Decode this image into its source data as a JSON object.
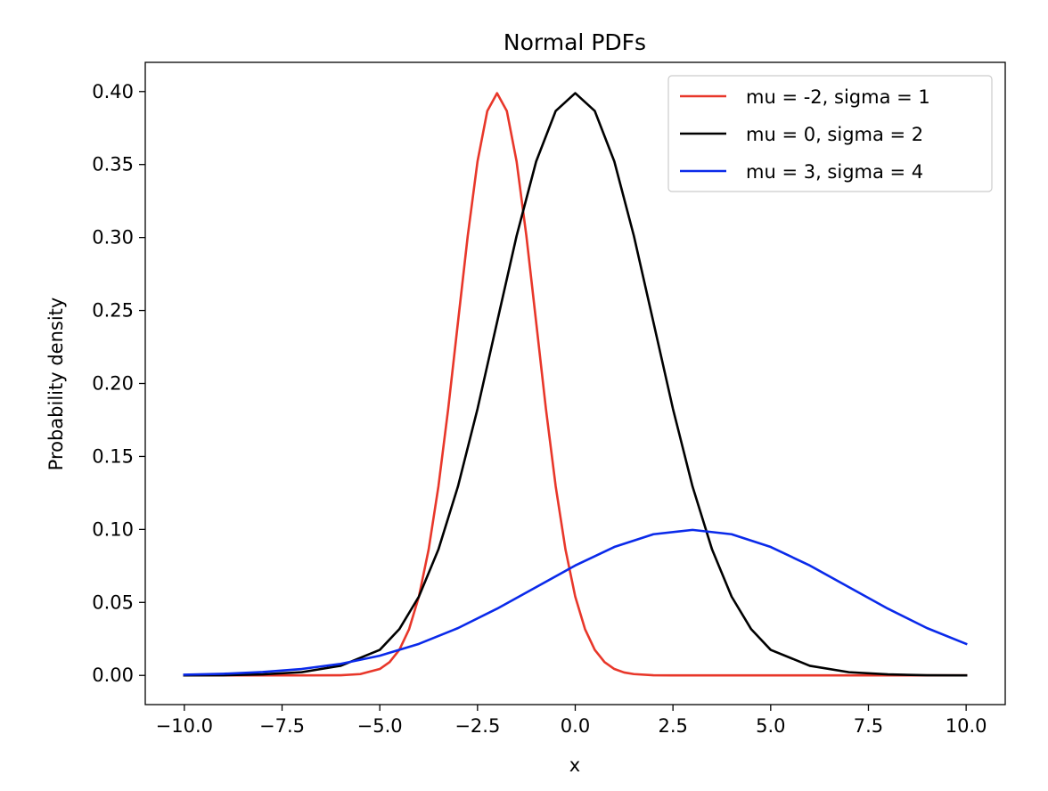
{
  "chart_data": {
    "type": "line",
    "title": "Normal PDFs",
    "xlabel": "x",
    "ylabel": "Probability density",
    "xlim": [
      -11.0,
      11.0
    ],
    "ylim": [
      -0.02,
      0.42
    ],
    "x_ticks": [
      {
        "value": -10.0,
        "label": "−10.0"
      },
      {
        "value": -7.5,
        "label": "−7.5"
      },
      {
        "value": -5.0,
        "label": "−5.0"
      },
      {
        "value": -2.5,
        "label": "−2.5"
      },
      {
        "value": 0.0,
        "label": "0.0"
      },
      {
        "value": 2.5,
        "label": "2.5"
      },
      {
        "value": 5.0,
        "label": "5.0"
      },
      {
        "value": 7.5,
        "label": "7.5"
      },
      {
        "value": 10.0,
        "label": "10.0"
      }
    ],
    "y_ticks": [
      {
        "value": 0.0,
        "label": "0.00"
      },
      {
        "value": 0.05,
        "label": "0.05"
      },
      {
        "value": 0.1,
        "label": "0.10"
      },
      {
        "value": 0.15,
        "label": "0.15"
      },
      {
        "value": 0.2,
        "label": "0.20"
      },
      {
        "value": 0.25,
        "label": "0.25"
      },
      {
        "value": 0.3,
        "label": "0.30"
      },
      {
        "value": 0.35,
        "label": "0.35"
      },
      {
        "value": 0.4,
        "label": "0.40"
      }
    ],
    "grid": false,
    "legend_position": "top-right",
    "series": [
      {
        "name": "mu = -2, sigma = 1",
        "color": "#e8372a",
        "x": [
          -10.0,
          -9.0,
          -8.0,
          -7.0,
          -6.0,
          -5.5,
          -5.0,
          -4.75,
          -4.5,
          -4.25,
          -4.0,
          -3.75,
          -3.5,
          -3.25,
          -3.0,
          -2.75,
          -2.5,
          -2.25,
          -2.0,
          -1.75,
          -1.5,
          -1.25,
          -1.0,
          -0.75,
          -0.5,
          -0.25,
          0.0,
          0.25,
          0.5,
          0.75,
          1.0,
          1.25,
          1.5,
          2.0,
          2.5,
          3.0,
          4.0,
          5.0,
          6.0,
          7.0,
          8.0,
          9.0,
          10.0
        ],
        "y": [
          0.0,
          0.0,
          0.0,
          0.0,
          0.0001,
          0.0009,
          0.0044,
          0.0091,
          0.0175,
          0.0317,
          0.054,
          0.0863,
          0.1295,
          0.1826,
          0.242,
          0.3011,
          0.3521,
          0.3867,
          0.3989,
          0.3867,
          0.3521,
          0.3011,
          0.242,
          0.1826,
          0.1295,
          0.0863,
          0.054,
          0.0317,
          0.0175,
          0.0091,
          0.0044,
          0.002,
          0.0009,
          0.0001,
          0.0,
          0.0,
          0.0,
          0.0,
          0.0,
          0.0,
          0.0,
          0.0,
          0.0
        ]
      },
      {
        "name": "mu = 0, sigma = 2",
        "color": "#000000",
        "x": [
          -10.0,
          -9.0,
          -8.0,
          -7.0,
          -6.0,
          -5.0,
          -4.5,
          -4.0,
          -3.5,
          -3.0,
          -2.5,
          -2.0,
          -1.5,
          -1.0,
          -0.5,
          0.0,
          0.5,
          1.0,
          1.5,
          2.0,
          2.5,
          3.0,
          3.5,
          4.0,
          4.5,
          5.0,
          6.0,
          7.0,
          8.0,
          9.0,
          10.0
        ],
        "y": [
          0.0,
          0.0001,
          0.0007,
          0.0022,
          0.0066,
          0.0175,
          0.0317,
          0.054,
          0.0863,
          0.1295,
          0.1826,
          0.242,
          0.3011,
          0.3521,
          0.3867,
          0.3989,
          0.3867,
          0.3521,
          0.3011,
          0.242,
          0.1826,
          0.1295,
          0.0863,
          0.054,
          0.0317,
          0.0175,
          0.0066,
          0.0022,
          0.0007,
          0.0001,
          0.0
        ]
      },
      {
        "name": "mu = 3, sigma = 4",
        "color": "#0a2aea",
        "x": [
          -10.0,
          -9.0,
          -8.0,
          -7.0,
          -6.0,
          -5.0,
          -4.0,
          -3.0,
          -2.0,
          -1.0,
          0.0,
          1.0,
          2.0,
          3.0,
          4.0,
          5.0,
          6.0,
          7.0,
          8.0,
          9.0,
          10.0
        ],
        "y": [
          0.0005,
          0.0011,
          0.0023,
          0.0044,
          0.0079,
          0.0135,
          0.0216,
          0.0324,
          0.0457,
          0.0605,
          0.0753,
          0.088,
          0.0967,
          0.0997,
          0.0967,
          0.088,
          0.0753,
          0.0605,
          0.0457,
          0.0324,
          0.0216
        ]
      }
    ]
  }
}
